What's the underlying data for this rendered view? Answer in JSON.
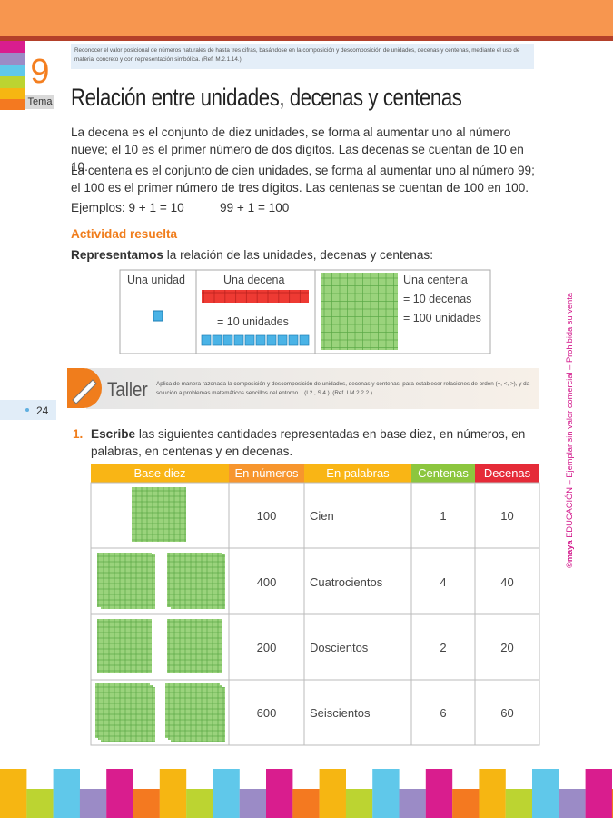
{
  "header": {
    "objective": "Reconocer el valor posicional de números naturales de hasta tres cifras, basándose en la composición y descomposición de unidades, decenas y centenas, mediante el uso de material concreto y con representación simbólica. (Ref. M.2.1.14.).",
    "tema_number": "9",
    "tema_label": "Tema",
    "title": "Relación entre unidades, decenas y centenas"
  },
  "intro": {
    "paragraphs": [
      "La decena es el conjunto de diez unidades, se forma al aumentar uno al número nueve; el 10 es el primer número de dos dígitos. Las decenas se cuentan de 10 en 10.",
      "La centena es el conjunto de cien unidades, se forma al aumentar uno al número 99; el 100 es el primer número de tres dígitos. Las centenas se cuentan de 100 en 100."
    ],
    "examples": [
      "Ejemplos: 9 + 1 = 10",
      "99 + 1 = 100"
    ]
  },
  "activity": {
    "title": "Actividad resuelta",
    "lead_bold": "Representamos",
    "lead_rest": "la relación de las unidades, decenas y centenas:",
    "cells": {
      "unit": "Una unidad",
      "ten": "Una decena",
      "ten_equals": "= 10 unidades",
      "hundred": "Una centena",
      "hundred_tens": "= 10 decenas",
      "hundred_units": "= 100 unidades"
    }
  },
  "taller": {
    "label": "Taller",
    "text": "Aplica de manera razonada la composición y descomposición de unidades, decenas y centenas, para establecer relaciones de orden (=, <, >), y da solución a problemas matemáticos sencillos del entorno. . (I.2., S.4.). (Ref. I.M.2.2.2.)."
  },
  "page_number": "24",
  "side_note": {
    "brand": "©maya",
    "text": "EDUCACIÓN – Ejemplar sin valor comercial – Prohibida su venta"
  },
  "exercise": {
    "number": "1.",
    "bold": "Escribe",
    "text": "las siguientes cantidades representadas en base diez, en números, en palabras, en centenas y en decenas.",
    "table": {
      "headers": [
        "Base diez",
        "En números",
        "En palabras",
        "Centenas",
        "Decenas"
      ],
      "rows": [
        [
          "100",
          "Cien",
          "1",
          "10"
        ],
        [
          "400",
          "Cuatrocientos",
          "4",
          "40"
        ],
        [
          "200",
          "Doscientos",
          "2",
          "20"
        ],
        [
          "600",
          "Seiscientos",
          "6",
          "60"
        ]
      ]
    }
  }
}
